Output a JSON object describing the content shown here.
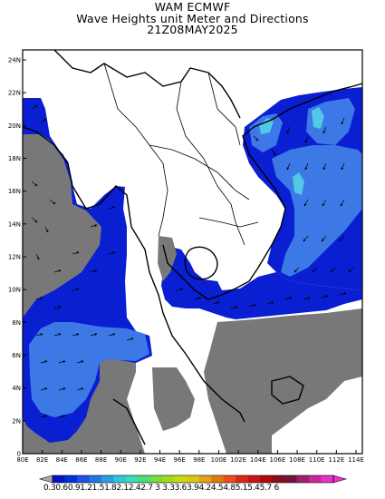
{
  "titles": {
    "line1": "WAM ECMWF",
    "line2": "Wave Heights unit Meter and Directions",
    "line3": "21Z08MAY2025"
  },
  "axes": {
    "lat_labels": [
      "0",
      "2N",
      "4N",
      "6N",
      "8N",
      "10N",
      "12N",
      "14N",
      "16N",
      "18N",
      "20N",
      "22N",
      "24N"
    ],
    "lon_labels": [
      "80E",
      "82E",
      "84E",
      "86E",
      "88E",
      "90E",
      "92E",
      "94E",
      "96E",
      "98E",
      "100E",
      "102E",
      "104E",
      "106E",
      "108E",
      "110E",
      "112E",
      "114E"
    ]
  },
  "colorbar": {
    "label": "0.30.60.91.21.51.82.12.42.7 3 3.33.63.94.24.54.85.15.45.7 6",
    "colors": [
      "#0014c8",
      "#0032dc",
      "#1e50e6",
      "#1e78e6",
      "#28a0e6",
      "#32c8dc",
      "#3cdcb4",
      "#50dc78",
      "#78dc3c",
      "#a0dc1e",
      "#c8dc14",
      "#dcc814",
      "#e6a014",
      "#e67814",
      "#e65014",
      "#dc2814",
      "#c81414",
      "#aa0a0a",
      "#8c0a1e",
      "#78143c",
      "#a01e6e",
      "#c8289a",
      "#e632c8"
    ]
  },
  "colors": {
    "land": "#ffffff",
    "no_data": "#787878",
    "low_wave": "#0a1ed2",
    "mid_wave": "#3c78e6",
    "high_wave": "#50c8e6"
  }
}
